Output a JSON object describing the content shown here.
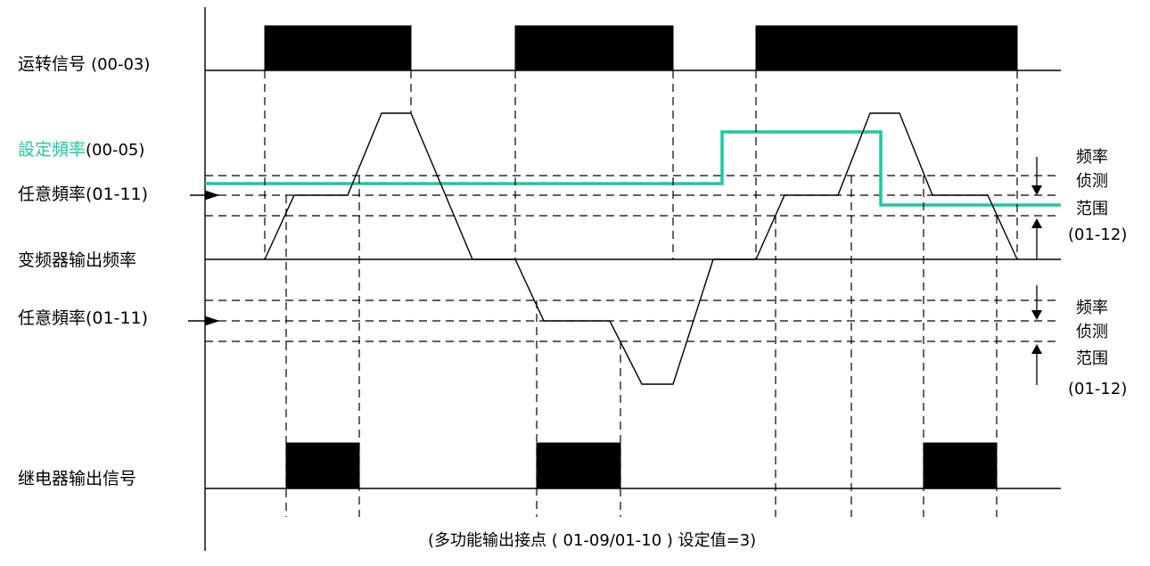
{
  "colors": {
    "set_frequency_accent": "#1fc7a0",
    "line": "#000000",
    "background": "#ffffff"
  },
  "labels": {
    "run_signal": "运转信号",
    "run_signal_code": "(00-03)",
    "set_frequency": "設定頻率",
    "set_frequency_code": "(00-05)",
    "arbitrary_frequency_upper": "任意頻率(01-11)",
    "inverter_output_frequency": "变频器输出频率",
    "arbitrary_frequency_lower": "任意頻率(01-11)",
    "relay_output_signal": "继电器输出信号"
  },
  "detection_range": {
    "upper": [
      "频率",
      "侦测",
      "范围",
      "(01-12)"
    ],
    "lower": [
      "频率",
      "侦测",
      "范围",
      "(01-12)"
    ]
  },
  "caption": "(多功能输出接点 ( 01-09/01-10 ) 设定值=3)"
}
